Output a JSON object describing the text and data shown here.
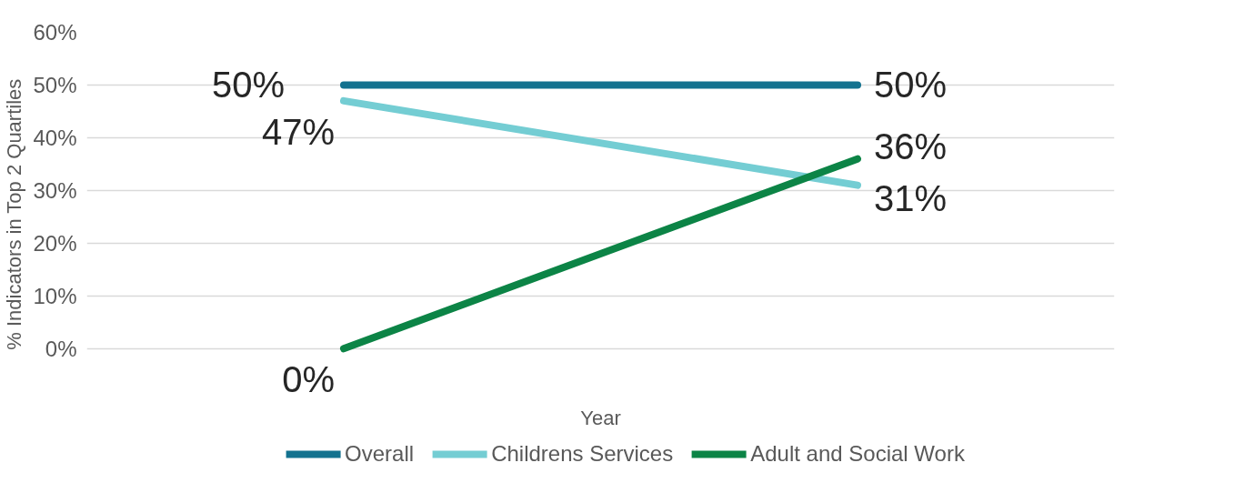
{
  "chart_data": {
    "type": "line",
    "xlabel": "Year",
    "ylabel": "% Indicators in Top 2 Quartiles",
    "categories": [
      null,
      null
    ],
    "series": [
      {
        "name": "Overall",
        "color": "#13728f",
        "values": [
          50,
          50
        ],
        "value_labels": [
          "50%",
          "50%"
        ]
      },
      {
        "name": "Childrens Services",
        "color": "#74cdd3",
        "values": [
          47,
          31
        ],
        "value_labels": [
          "47%",
          "31%"
        ]
      },
      {
        "name": "Adult and Social Work",
        "color": "#0c8446",
        "values": [
          0,
          36
        ],
        "value_labels": [
          "0%",
          "36%"
        ]
      }
    ],
    "ylim": [
      0,
      60
    ],
    "yticks": [
      {
        "value": 0,
        "label": "0%"
      },
      {
        "value": 10,
        "label": "10%"
      },
      {
        "value": 20,
        "label": "20%"
      },
      {
        "value": 30,
        "label": "30%"
      },
      {
        "value": 40,
        "label": "40%"
      },
      {
        "value": 50,
        "label": "50%"
      },
      {
        "value": 60,
        "label": "60%"
      }
    ],
    "grid": "y",
    "legend": "bottom",
    "tick_labels": "y",
    "marker": "none",
    "line_style": "solid"
  }
}
